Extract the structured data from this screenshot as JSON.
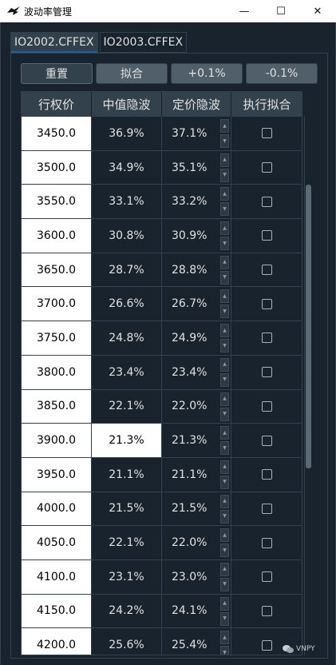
{
  "window": {
    "title": "波动率管理",
    "minimize_glyph": "—",
    "maximize_glyph": "☐",
    "close_glyph": "✕"
  },
  "tabs": [
    {
      "label": "IO2002.CFFEX",
      "active": true
    },
    {
      "label": "IO2003.CFFEX",
      "active": false
    }
  ],
  "toolbar": {
    "reset_label": "重置",
    "fit_label": "拟合",
    "increase_label": "+0.1%",
    "decrease_label": "-0.1%"
  },
  "table": {
    "headers": [
      "行权价",
      "中值隐波",
      "定价隐波",
      "执行拟合"
    ],
    "selected_row": 9,
    "rows": [
      {
        "strike": "3450.0",
        "mid_vol": "36.9%",
        "pricing_vol": "37.1%"
      },
      {
        "strike": "3500.0",
        "mid_vol": "34.9%",
        "pricing_vol": "35.1%"
      },
      {
        "strike": "3550.0",
        "mid_vol": "33.1%",
        "pricing_vol": "33.2%"
      },
      {
        "strike": "3600.0",
        "mid_vol": "30.8%",
        "pricing_vol": "30.9%"
      },
      {
        "strike": "3650.0",
        "mid_vol": "28.7%",
        "pricing_vol": "28.8%"
      },
      {
        "strike": "3700.0",
        "mid_vol": "26.6%",
        "pricing_vol": "26.7%"
      },
      {
        "strike": "3750.0",
        "mid_vol": "24.8%",
        "pricing_vol": "24.9%"
      },
      {
        "strike": "3800.0",
        "mid_vol": "23.4%",
        "pricing_vol": "23.4%"
      },
      {
        "strike": "3850.0",
        "mid_vol": "22.1%",
        "pricing_vol": "22.0%"
      },
      {
        "strike": "3900.0",
        "mid_vol": "21.3%",
        "pricing_vol": "21.3%"
      },
      {
        "strike": "3950.0",
        "mid_vol": "21.1%",
        "pricing_vol": "21.1%"
      },
      {
        "strike": "4000.0",
        "mid_vol": "21.5%",
        "pricing_vol": "21.5%"
      },
      {
        "strike": "4050.0",
        "mid_vol": "22.1%",
        "pricing_vol": "22.0%"
      },
      {
        "strike": "4100.0",
        "mid_vol": "23.1%",
        "pricing_vol": "23.0%"
      },
      {
        "strike": "4150.0",
        "mid_vol": "24.2%",
        "pricing_vol": "24.1%"
      },
      {
        "strike": "4200.0",
        "mid_vol": "25.6%",
        "pricing_vol": "25.4%"
      }
    ]
  },
  "watermark": {
    "text": "VNPY"
  },
  "colors": {
    "background": "#19232d",
    "header": "#32414b",
    "button": "#505f69",
    "text": "#e0e1e3",
    "tab_accent": "#1464a0"
  }
}
